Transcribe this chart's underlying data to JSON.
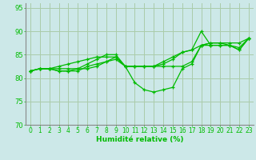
{
  "xlabel": "Humidité relative (%)",
  "ylabel": "",
  "bg_color": "#cce8e8",
  "grid_color": "#aaccaa",
  "line_color": "#00bb00",
  "x_values": [
    0,
    1,
    2,
    3,
    4,
    5,
    6,
    7,
    8,
    9,
    10,
    11,
    12,
    13,
    14,
    15,
    16,
    17,
    18,
    19,
    20,
    21,
    22,
    23
  ],
  "series": [
    [
      81.5,
      82.0,
      82.0,
      82.0,
      82.0,
      82.0,
      83.0,
      84.0,
      85.0,
      85.0,
      82.5,
      79.0,
      77.5,
      77.0,
      77.5,
      78.0,
      82.0,
      83.0,
      87.0,
      87.0,
      87.0,
      87.0,
      86.0,
      88.5
    ],
    [
      81.5,
      82.0,
      82.0,
      82.5,
      83.0,
      83.5,
      84.0,
      84.5,
      84.5,
      84.5,
      82.5,
      82.5,
      82.5,
      82.5,
      83.5,
      84.5,
      85.5,
      86.0,
      87.0,
      87.5,
      87.5,
      87.5,
      87.5,
      88.5
    ],
    [
      81.5,
      82.0,
      82.0,
      81.5,
      81.5,
      82.0,
      82.0,
      82.5,
      83.5,
      84.0,
      82.5,
      82.5,
      82.5,
      82.5,
      82.5,
      82.5,
      82.5,
      83.5,
      87.0,
      87.5,
      87.5,
      87.0,
      86.0,
      88.5
    ],
    [
      81.5,
      82.0,
      82.0,
      81.5,
      81.5,
      81.5,
      82.5,
      83.0,
      83.5,
      84.5,
      82.5,
      82.5,
      82.5,
      82.5,
      83.0,
      84.0,
      85.5,
      86.0,
      90.0,
      87.0,
      87.0,
      87.0,
      86.5,
      88.5
    ]
  ],
  "ylim": [
    70,
    96
  ],
  "yticks": [
    70,
    75,
    80,
    85,
    90,
    95
  ],
  "xlim": [
    -0.5,
    23.5
  ],
  "tick_label_fontsize": 5.5,
  "xlabel_fontsize": 6.5
}
